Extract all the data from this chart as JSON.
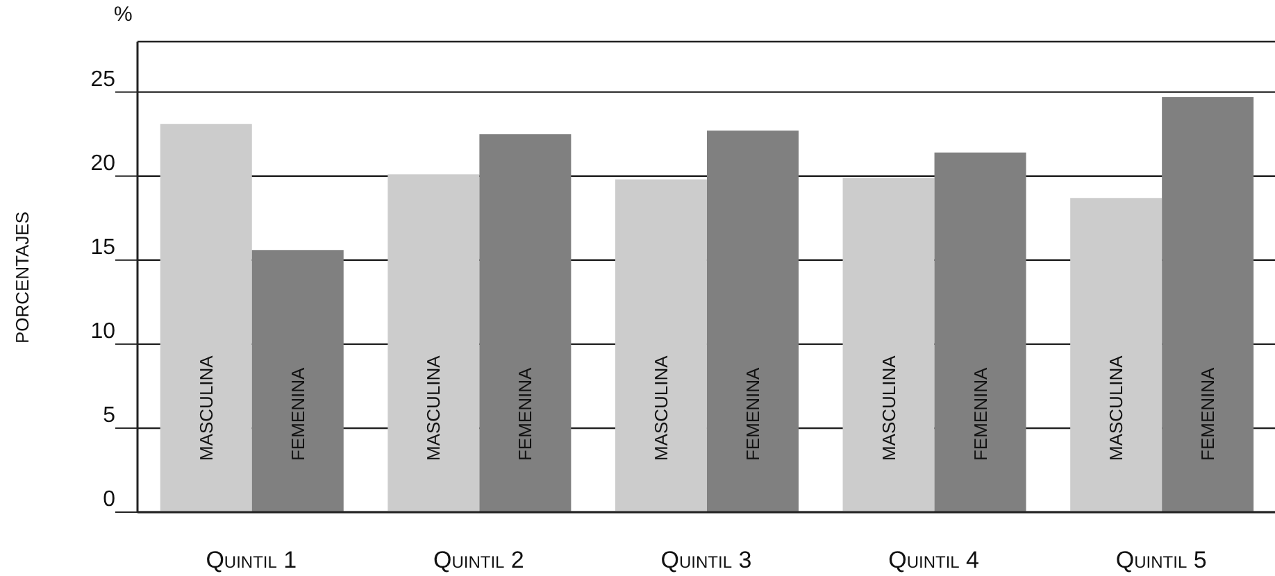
{
  "chart_data": {
    "type": "bar",
    "ylabel": "PORCENTAJES",
    "annotations": [
      "%"
    ],
    "categories": [
      "Quintil 1",
      "Quintil 2",
      "Quintil 3",
      "Quintil 4",
      "Quintil 5"
    ],
    "series": [
      {
        "name": "MASCULINA",
        "color": "#cccccc",
        "values": [
          23.1,
          20.1,
          19.8,
          19.9,
          18.7
        ]
      },
      {
        "name": "FEMENINA",
        "color": "#808080",
        "values": [
          15.6,
          22.5,
          22.7,
          21.4,
          24.7
        ]
      }
    ],
    "ylim": [
      0,
      28
    ],
    "yticks": [
      0,
      5,
      10,
      15,
      20,
      25
    ],
    "grid": "y",
    "legend": false
  }
}
